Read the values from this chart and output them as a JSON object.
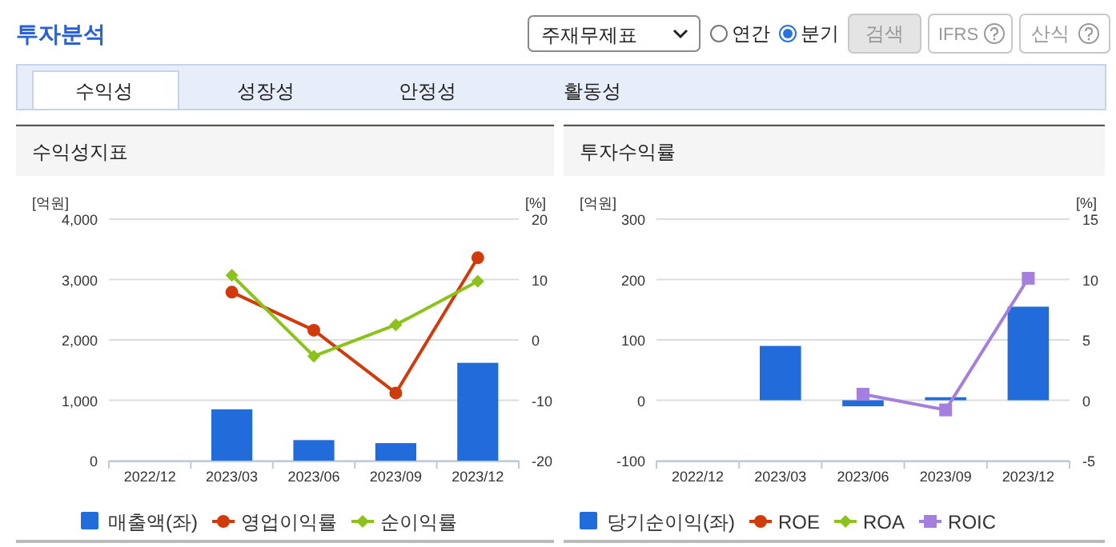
{
  "chart_data": [
    {
      "type": "other",
      "annotations": [
        "투자분석",
        "주재무제표",
        "연간",
        "분기",
        "검색",
        "IFRS",
        "산식",
        "수익성",
        "성장성",
        "안정성",
        "활동성"
      ]
    },
    {
      "type": "bar",
      "title": "수익성지표",
      "ylabel": "[억원]",
      "y2label": "[%]",
      "categories": [
        "2022/12",
        "2023/03",
        "2023/06",
        "2023/09",
        "2023/12"
      ],
      "series": [
        {
          "name": "매출액(좌)",
          "type": "bar",
          "color": "#216bdb",
          "values": [
            null,
            850,
            340,
            290,
            1620
          ]
        },
        {
          "name": "영업이익률",
          "type": "line",
          "axis": "y2",
          "marker": "circle",
          "color": "#d13b0c",
          "values": [
            null,
            7.9,
            1.6,
            -8.8,
            13.6
          ]
        },
        {
          "name": "순이익률",
          "type": "line",
          "axis": "y2",
          "marker": "diamond",
          "color": "#8cc21c",
          "values": [
            null,
            10.7,
            -2.7,
            2.5,
            9.7
          ]
        }
      ],
      "ylim": [
        0,
        4000
      ],
      "yticks": [
        0,
        {
          "value": 1000,
          "label": "1,000"
        },
        {
          "value": 2000,
          "label": "2,000"
        },
        {
          "value": 3000,
          "label": "3,000"
        },
        {
          "value": 4000,
          "label": "4,000"
        }
      ],
      "y2lim": [
        -20,
        20
      ],
      "y2ticks": [
        -20,
        -10,
        0,
        10,
        20
      ],
      "grid": "y",
      "legend": "bottom"
    },
    {
      "type": "bar",
      "title": "투자수익률",
      "ylabel": "[억원]",
      "y2label": "[%]",
      "categories": [
        "2022/12",
        "2023/03",
        "2023/06",
        "2023/09",
        "2023/12"
      ],
      "series": [
        {
          "name": "당기순이익(좌)",
          "type": "bar",
          "color": "#216bdb",
          "values": [
            null,
            90,
            -10,
            5,
            155
          ]
        },
        {
          "name": "ROE",
          "type": "line",
          "axis": "y2",
          "marker": "circle",
          "color": "#d13b0c",
          "values": [
            null,
            null,
            null,
            null,
            null
          ]
        },
        {
          "name": "ROA",
          "type": "line",
          "axis": "y2",
          "marker": "diamond",
          "color": "#8cc21c",
          "values": [
            null,
            null,
            null,
            null,
            null
          ]
        },
        {
          "name": "ROIC",
          "type": "line",
          "axis": "y2",
          "marker": "square",
          "color": "#a57fdd",
          "values": [
            null,
            null,
            0.5,
            -0.8,
            10.1
          ]
        }
      ],
      "ylim": [
        -100,
        300
      ],
      "yticks": [
        -100,
        0,
        100,
        200,
        300
      ],
      "y2lim": [
        -5,
        15
      ],
      "y2ticks": [
        -5,
        0,
        5,
        10,
        15
      ],
      "grid": "y",
      "legend": "bottom"
    }
  ]
}
